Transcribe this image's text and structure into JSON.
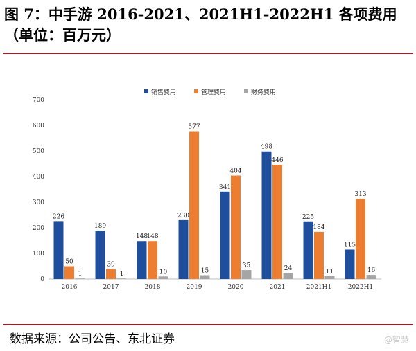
{
  "title": {
    "line1": "图 7：中手游 2016-2021、2021H1-2022H1 各项费用",
    "line2": "（单位：百万元）"
  },
  "source": "数据来源：公司公告、东北证券",
  "watermark": "@智慧",
  "chart_data": {
    "type": "bar",
    "categories": [
      "2016",
      "2017",
      "2018",
      "2019",
      "2020",
      "2021",
      "2021H1",
      "2022H1"
    ],
    "series": [
      {
        "name": "销售费用",
        "color": "#1f4e9c",
        "values": [
          226,
          189,
          148,
          230,
          341,
          498,
          225,
          115
        ]
      },
      {
        "name": "管理费用",
        "color": "#ed7d31",
        "values": [
          50,
          39,
          148,
          577,
          404,
          446,
          184,
          313
        ]
      },
      {
        "name": "财务费用",
        "color": "#a5a5a5",
        "values": [
          1,
          1,
          10,
          15,
          35,
          24,
          11,
          16
        ]
      }
    ],
    "ylim": [
      0,
      700
    ],
    "yticks": [
      0,
      100,
      200,
      300,
      400,
      500,
      600,
      700
    ],
    "legend_position": "top-center",
    "grid": false
  }
}
